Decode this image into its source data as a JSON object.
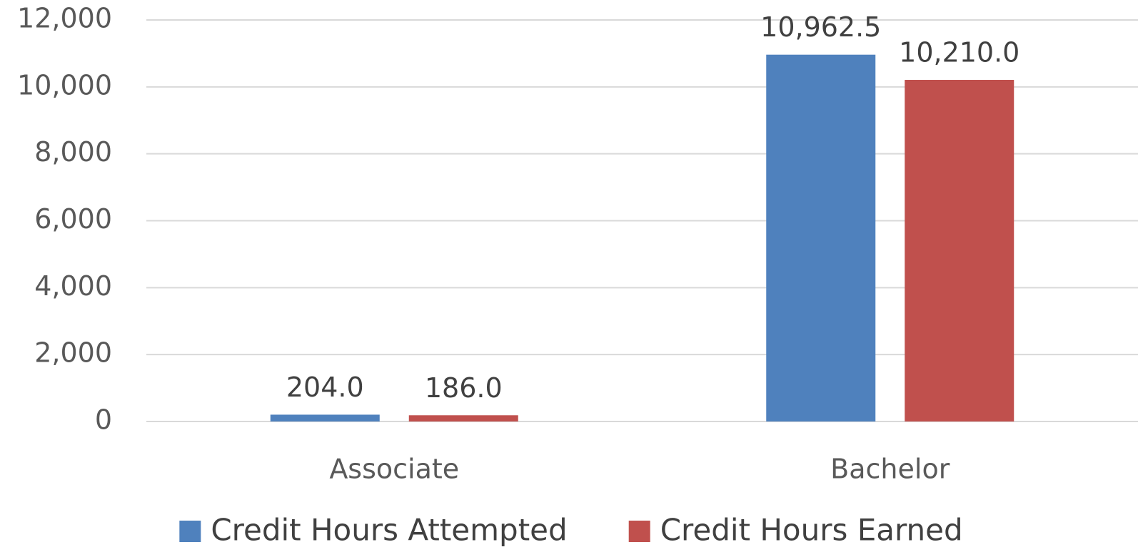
{
  "chart_data": {
    "type": "bar",
    "categories": [
      "Associate",
      "Bachelor"
    ],
    "series": [
      {
        "name": "Credit Hours Attempted",
        "color": "#4f81bd",
        "values": [
          204,
          10962.5
        ],
        "value_labels": [
          "204.0",
          "10,962.5"
        ]
      },
      {
        "name": "Credit Hours Earned",
        "color": "#c0504d",
        "values": [
          186,
          10210
        ],
        "value_labels": [
          "186.0",
          "10,210.0"
        ]
      }
    ],
    "ylim": [
      0,
      12000
    ],
    "yticks": [
      0,
      {
        "value": 2000,
        "label": "2,000"
      },
      {
        "value": 4000,
        "label": "4,000"
      },
      {
        "value": 6000,
        "label": "6,000"
      },
      {
        "value": 8000,
        "label": "8,000"
      },
      {
        "value": 10000,
        "label": "10,000"
      },
      {
        "value": 12000,
        "label": "12,000"
      }
    ],
    "grid": true,
    "legend": "bottom"
  }
}
